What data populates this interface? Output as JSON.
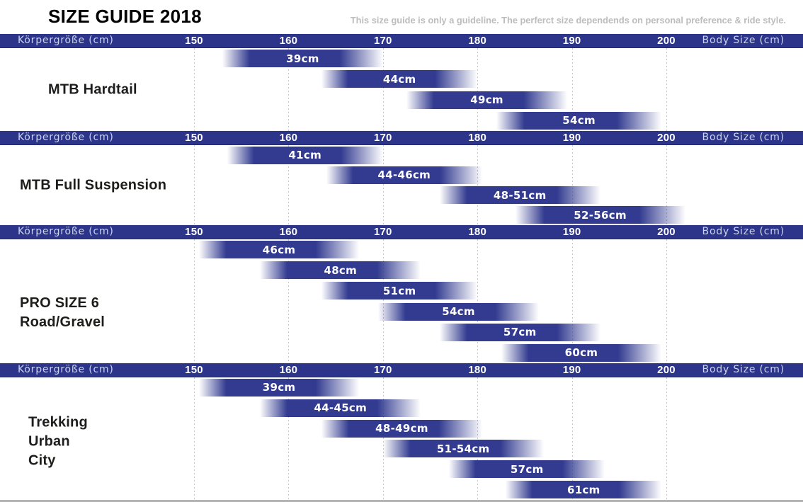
{
  "header": {
    "title": "SIZE GUIDE 2018",
    "disclaimer": "This size guide is only a guideline. The perferct size dependends on personal preference & ride style."
  },
  "axis": {
    "left_label": "Körpergröße (cm)",
    "right_label": "Body Size (cm)",
    "ticks": [
      150,
      160,
      170,
      180,
      190,
      200
    ],
    "unit": "cm"
  },
  "colors": {
    "band": "#2c3589",
    "bar": "#323b90",
    "grid": "#c6c6c6",
    "disclaimer_text": "#bcbcbc",
    "bar_label_text": "#ffffff",
    "tick_text": "#ffffff",
    "axis_label_text": "#ccd3ee",
    "bottom_line": "#b3b3b3"
  },
  "chart_data": {
    "type": "bar",
    "subtype": "horizontal-range-bars",
    "title": "SIZE GUIDE 2018",
    "xlabel_left": "Körpergröße (cm)",
    "xlabel_right": "Body Size (cm)",
    "x_ticks": [
      150,
      160,
      170,
      180,
      190,
      200
    ],
    "x_unit": "cm body height",
    "grid": "dotted-vertical",
    "sections": [
      {
        "name": "MTB Hardtail",
        "label_lines": [
          "MTB Hardtail"
        ],
        "bars": [
          {
            "frame_size": "39cm",
            "body_from": 153,
            "body_to": 170
          },
          {
            "frame_size": "44cm",
            "body_from": 163.5,
            "body_to": 180
          },
          {
            "frame_size": "49cm",
            "body_from": 172.5,
            "body_to": 189.5
          },
          {
            "frame_size": "54cm",
            "body_from": 182,
            "body_to": 199.5
          }
        ]
      },
      {
        "name": "MTB Full Suspension",
        "label_lines": [
          "MTB Full Suspension"
        ],
        "bars": [
          {
            "frame_size": "41cm",
            "body_from": 153.5,
            "body_to": 170
          },
          {
            "frame_size": "44-46cm",
            "body_from": 164,
            "body_to": 180.5
          },
          {
            "frame_size": "48-51cm",
            "body_from": 176,
            "body_to": 193
          },
          {
            "frame_size": "52-56cm",
            "body_from": 184,
            "body_to": 202
          }
        ]
      },
      {
        "name": "PRO SIZE 6 Road/Gravel",
        "label_lines": [
          "PRO SIZE 6",
          "Road/Gravel"
        ],
        "bars": [
          {
            "frame_size": "46cm",
            "body_from": 150.5,
            "body_to": 167.5
          },
          {
            "frame_size": "48cm",
            "body_from": 157,
            "body_to": 174
          },
          {
            "frame_size": "51cm",
            "body_from": 163.5,
            "body_to": 180
          },
          {
            "frame_size": "54cm",
            "body_from": 169.5,
            "body_to": 186.5
          },
          {
            "frame_size": "57cm",
            "body_from": 176,
            "body_to": 193
          },
          {
            "frame_size": "60cm",
            "body_from": 182.5,
            "body_to": 199.5
          }
        ]
      },
      {
        "name": "Trekking Urban City",
        "label_lines": [
          "Trekking",
          "Urban",
          "City"
        ],
        "bars": [
          {
            "frame_size": "39cm",
            "body_from": 150.5,
            "body_to": 167.5
          },
          {
            "frame_size": "44-45cm",
            "body_from": 157,
            "body_to": 174
          },
          {
            "frame_size": "48-49cm",
            "body_from": 163.5,
            "body_to": 180.5
          },
          {
            "frame_size": "51-54cm",
            "body_from": 170,
            "body_to": 187
          },
          {
            "frame_size": "57cm",
            "body_from": 177,
            "body_to": 193.5
          },
          {
            "frame_size": "61cm",
            "body_from": 183,
            "body_to": 199.5
          }
        ]
      }
    ]
  }
}
